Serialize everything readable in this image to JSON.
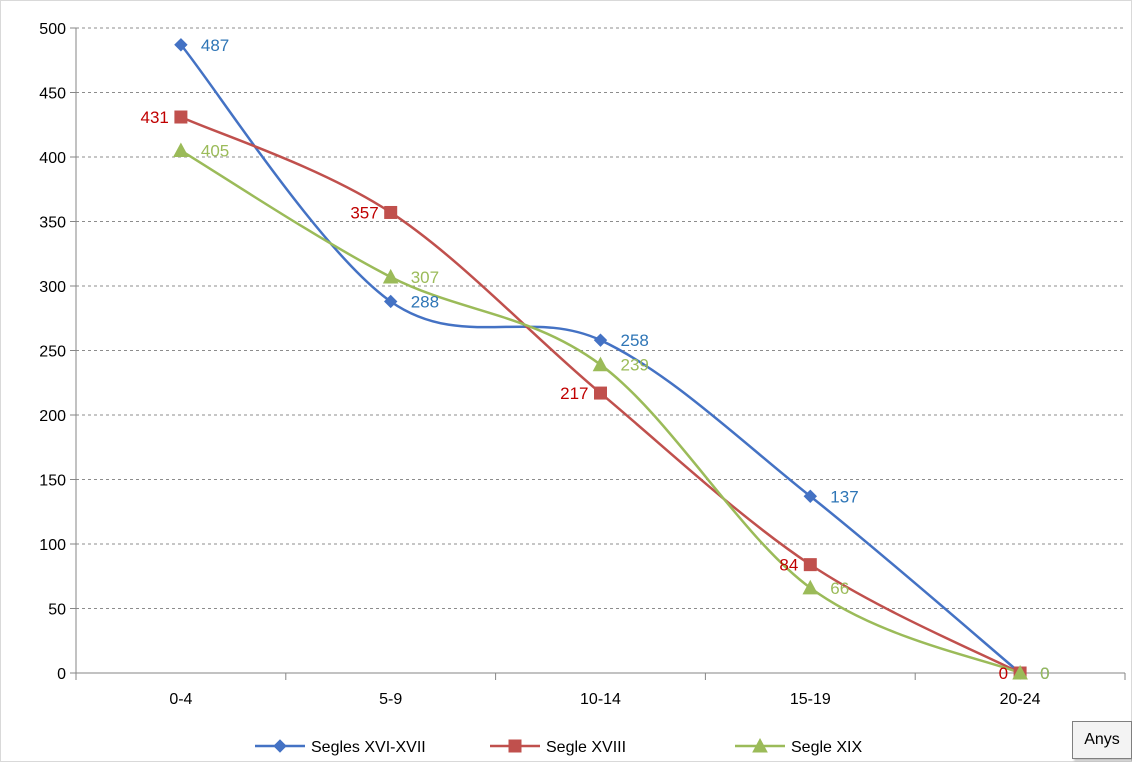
{
  "chart_data": {
    "type": "line",
    "title": "",
    "xlabel": "",
    "ylabel": "",
    "categories": [
      "0-4",
      "5-9",
      "10-14",
      "15-19",
      "20-24"
    ],
    "ylim": [
      0,
      500
    ],
    "yticks": [
      0,
      50,
      100,
      150,
      200,
      250,
      300,
      350,
      400,
      450,
      500
    ],
    "grid": "horizontal dashed",
    "legend_position": "bottom",
    "smooth": true,
    "series": [
      {
        "name": "Segles XVI-XVII",
        "values": [
          487,
          288,
          258,
          137,
          0
        ],
        "color": "#4472c4",
        "label_color": "#2e75b6",
        "marker": "diamond"
      },
      {
        "name": "Segle XVIII",
        "values": [
          431,
          357,
          217,
          84,
          0
        ],
        "color": "#c0504d",
        "label_color": "#c00000",
        "marker": "square"
      },
      {
        "name": "Segle XIX",
        "values": [
          405,
          307,
          239,
          66,
          0
        ],
        "color": "#9bbb59",
        "label_color": "#9bbb59",
        "marker": "triangle"
      }
    ]
  },
  "axis_box_label": "Anys"
}
